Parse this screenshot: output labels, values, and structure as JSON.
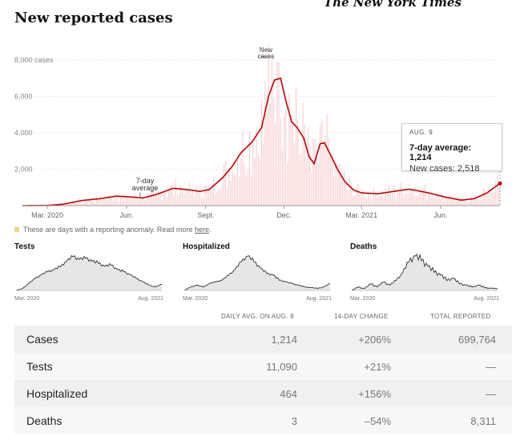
{
  "header": {
    "publisher": "The New York Times",
    "title": "New reported cases"
  },
  "chart_data": {
    "type": "bar",
    "title": "New reported cases",
    "ylim": [
      0,
      8000
    ],
    "yticks": [
      2000,
      4000,
      6000,
      8000
    ],
    "ytick_labels": [
      "2,000",
      "4,000",
      "6,000",
      "8,000 cases"
    ],
    "x_start": "2020-02-01",
    "x_end": "2021-08-09",
    "xtick_dates": [
      "2020-03-01",
      "2020-06-01",
      "2020-09-01",
      "2020-12-01",
      "2021-03-01",
      "2021-06-01"
    ],
    "xtick_labels": [
      "Mar. 2020",
      "Jun.",
      "Sept.",
      "Dec.",
      "Mar. 2021",
      "Jun."
    ],
    "annotations": [
      {
        "label": "7-day average",
        "date": "2020-06-15"
      },
      {
        "label": "New cases",
        "date": "2020-11-24"
      }
    ],
    "series": [
      {
        "name": "7-day average",
        "type": "line",
        "color": "#c00000",
        "points": [
          [
            "2020-02-01",
            0
          ],
          [
            "2020-03-01",
            10
          ],
          [
            "2020-03-20",
            80
          ],
          [
            "2020-04-10",
            280
          ],
          [
            "2020-05-01",
            380
          ],
          [
            "2020-05-20",
            520
          ],
          [
            "2020-06-05",
            480
          ],
          [
            "2020-06-20",
            420
          ],
          [
            "2020-07-05",
            600
          ],
          [
            "2020-07-25",
            950
          ],
          [
            "2020-08-10",
            880
          ],
          [
            "2020-08-25",
            780
          ],
          [
            "2020-09-05",
            880
          ],
          [
            "2020-09-20",
            1500
          ],
          [
            "2020-10-01",
            2100
          ],
          [
            "2020-10-12",
            2900
          ],
          [
            "2020-10-25",
            3500
          ],
          [
            "2020-11-05",
            4300
          ],
          [
            "2020-11-13",
            6000
          ],
          [
            "2020-11-20",
            6900
          ],
          [
            "2020-11-27",
            7000
          ],
          [
            "2020-12-04",
            5600
          ],
          [
            "2020-12-10",
            4600
          ],
          [
            "2020-12-16",
            4300
          ],
          [
            "2020-12-24",
            3700
          ],
          [
            "2020-12-30",
            2700
          ],
          [
            "2021-01-05",
            2300
          ],
          [
            "2021-01-12",
            3400
          ],
          [
            "2021-01-17",
            3450
          ],
          [
            "2021-01-24",
            2800
          ],
          [
            "2021-02-01",
            2000
          ],
          [
            "2021-02-10",
            1300
          ],
          [
            "2021-02-20",
            850
          ],
          [
            "2021-03-01",
            700
          ],
          [
            "2021-03-20",
            650
          ],
          [
            "2021-04-10",
            800
          ],
          [
            "2021-04-25",
            900
          ],
          [
            "2021-05-05",
            820
          ],
          [
            "2021-05-20",
            680
          ],
          [
            "2021-06-05",
            480
          ],
          [
            "2021-06-25",
            300
          ],
          [
            "2021-07-10",
            380
          ],
          [
            "2021-07-25",
            700
          ],
          [
            "2021-08-01",
            950
          ],
          [
            "2021-08-09",
            1214
          ]
        ]
      },
      {
        "name": "New cases",
        "type": "bar",
        "color": "#f7c9c9",
        "peak": {
          "date": "2020-11-24",
          "value": 7900
        }
      }
    ],
    "tooltip": {
      "date_label": "AUG. 9",
      "avg_label": "7-day average:",
      "avg_value": "1,214",
      "cases_label": "New cases:",
      "cases_value": "2,518"
    }
  },
  "legend": {
    "swatch_color": "#f3d48a",
    "text": "These are days with a reporting anomaly. Read more",
    "link": "here",
    "after": "."
  },
  "small_charts": [
    {
      "title": "Tests",
      "x_start": "Mar. 2020",
      "x_end": "Aug. 2021",
      "values": [
        0.0,
        0.05,
        0.2,
        0.35,
        0.45,
        0.55,
        0.6,
        0.7,
        0.85,
        1.0,
        0.9,
        0.95,
        0.85,
        0.8,
        0.7,
        0.75,
        0.6,
        0.55,
        0.45,
        0.35,
        0.25,
        0.15,
        0.1,
        0.18
      ]
    },
    {
      "title": "Hospitalized",
      "x_start": "Mar. 2020",
      "x_end": "Aug. 2021",
      "values": [
        0.0,
        0.1,
        0.15,
        0.1,
        0.2,
        0.25,
        0.3,
        0.45,
        0.6,
        0.85,
        1.0,
        0.85,
        0.65,
        0.5,
        0.45,
        0.3,
        0.25,
        0.2,
        0.15,
        0.1,
        0.08,
        0.06,
        0.1,
        0.2
      ]
    },
    {
      "title": "Deaths",
      "x_start": "Mar. 2020",
      "x_end": "Aug. 2021",
      "values": [
        0.0,
        0.1,
        0.05,
        0.2,
        0.1,
        0.25,
        0.15,
        0.3,
        0.5,
        0.85,
        1.0,
        0.9,
        0.7,
        0.55,
        0.45,
        0.3,
        0.35,
        0.2,
        0.15,
        0.1,
        0.15,
        0.08,
        0.06,
        0.05
      ]
    }
  ],
  "table": {
    "headers": {
      "daily": "DAILY AVG. ON AUG. 9",
      "change": "14-DAY CHANGE",
      "total": "TOTAL REPORTED"
    },
    "rows": [
      {
        "label": "Cases",
        "daily": "1,214",
        "change": "+206%",
        "total": "699,764"
      },
      {
        "label": "Tests",
        "daily": "11,090",
        "change": "+21%",
        "total": "—"
      },
      {
        "label": "Hospitalized",
        "daily": "464",
        "change": "+156%",
        "total": "—"
      },
      {
        "label": "Deaths",
        "daily": "3",
        "change": "–54%",
        "total": "8,311"
      }
    ]
  }
}
